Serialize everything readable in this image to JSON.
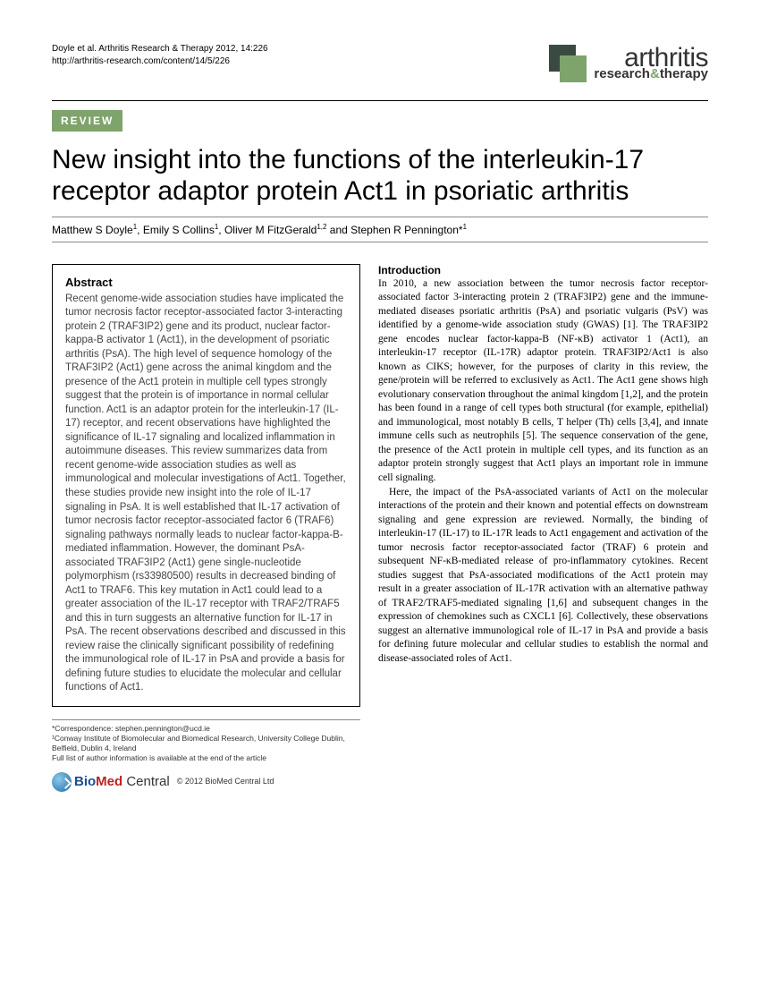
{
  "header": {
    "citation_line1": "Doyle et al. Arthritis Research & Therapy 2012, 14:226",
    "citation_line2": "http://arthritis-research.com/content/14/5/226",
    "journal_main": "arthritis",
    "journal_sub_research": "research",
    "journal_sub_amp": "&",
    "journal_sub_therapy": "therapy"
  },
  "badge": "REVIEW",
  "title": "New insight into the functions of the interleukin-17 receptor adaptor protein Act1 in psoriatic arthritis",
  "authors_html": "Matthew S Doyle<sup>1</sup>, Emily S Collins<sup>1</sup>, Oliver M FitzGerald<sup>1,2</sup> and Stephen R Pennington*<sup>1</sup>",
  "abstract": {
    "heading": "Abstract",
    "body": "Recent genome-wide association studies have implicated the tumor necrosis factor receptor-associated factor 3-interacting protein 2 (TRAF3IP2) gene and its product, nuclear factor-kappa-B activator 1 (Act1), in the development of psoriatic arthritis (PsA). The high level of sequence homology of the TRAF3IP2 (Act1) gene across the animal kingdom and the presence of the Act1 protein in multiple cell types strongly suggest that the protein is of importance in normal cellular function. Act1 is an adaptor protein for the interleukin-17 (IL-17) receptor, and recent observations have highlighted the significance of IL-17 signaling and localized inflammation in autoimmune diseases. This review summarizes data from recent genome-wide association studies as well as immunological and molecular investigations of Act1. Together, these studies provide new insight into the role of IL-17 signaling in PsA. It is well established that IL-17 activation of tumor necrosis factor receptor-associated factor 6 (TRAF6) signaling pathways normally leads to nuclear factor-kappa-B-mediated inflammation. However, the dominant PsA-associated TRAF3IP2 (Act1) gene single-nucleotide polymorphism (rs33980500) results in decreased binding of Act1 to TRAF6. This key mutation in Act1 could lead to a greater association of the IL-17 receptor with TRAF2/TRAF5 and this in turn suggests an alternative function for IL-17 in PsA. The recent observations described and discussed in this review raise the clinically significant possibility of redefining the immunological role of IL-17 in PsA and provide a basis for defining future studies to elucidate the molecular and cellular functions of Act1."
  },
  "intro": {
    "heading": "Introduction",
    "p1": "In 2010, a new association between the tumor necrosis factor receptor-associated factor 3-interacting protein 2 (TRAF3IP2) gene and the immune-mediated diseases psoriatic arthritis (PsA) and psoriatic vulgaris (PsV) was identified by a genome-wide association study (GWAS) [1]. The TRAF3IP2 gene encodes nuclear factor-kappa-B (NF-κB) activator 1 (Act1), an interleukin-17 receptor (IL-17R) adaptor protein. TRAF3IP2/Act1 is also known as CIKS; however, for the purposes of clarity in this review, the gene/protein will be referred to exclusively as Act1. The Act1 gene shows high evolutionary conservation throughout the animal kingdom [1,2], and the protein has been found in a range of cell types both structural (for example, epithelial) and immunological, most notably B cells, T helper (Th) cells [3,4], and innate immune cells such as neutrophils [5]. The sequence conservation of the gene, the presence of the Act1 protein in multiple cell types, and its function as an adaptor protein strongly suggest that Act1 plays an important role in immune cell signaling.",
    "p2": "Here, the impact of the PsA-associated variants of Act1 on the molecular interactions of the protein and their known and potential effects on downstream signaling and gene expression are reviewed. Normally, the binding of interleukin-17 (IL-17) to IL-17R leads to Act1 engagement and activation of the tumor necrosis factor receptor-associated factor (TRAF) 6 protein and subsequent NF-κB-mediated release of pro-inflammatory cytokines. Recent studies suggest that PsA-associated modifications of the Act1 protein may result in a greater association of IL-17R activation with an alternative pathway of TRAF2/TRAF5-mediated signaling [1,6] and subsequent changes in the expression of chemokines such as CXCL1 [6]. Collectively, these observations suggest an alternative immunological role of IL-17 in PsA and provide a basis for defining future molecular and cellular studies to establish the normal and disease-associated roles of Act1."
  },
  "footer": {
    "correspondence": "*Correspondence: stephen.pennington@ucd.ie",
    "affiliation": "¹Conway Institute of Biomolecular and Biomedical Research, University College Dublin, Belfield, Dublin 4, Ireland",
    "note": "Full list of author information is available at the end of the article",
    "copyright": "© 2012 BioMed Central Ltd"
  },
  "colors": {
    "accent_green": "#7ea36b",
    "dark_green": "#3a4a42"
  }
}
